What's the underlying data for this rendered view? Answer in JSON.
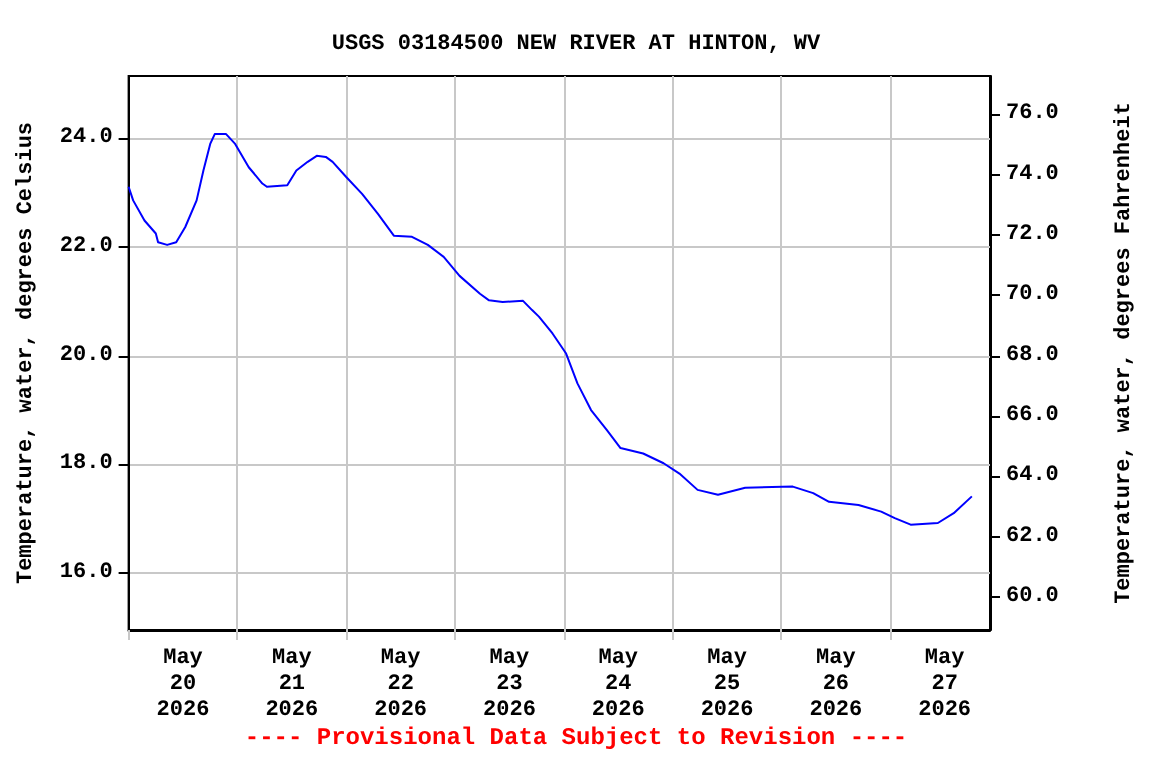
{
  "chart_data": {
    "type": "line",
    "title": "USGS 03184500 NEW RIVER AT HINTON, WV",
    "ylabel": "Temperature, water, degrees Celsius",
    "y2label": "Temperature, water, degrees Fahrenheit",
    "annotations": [
      "---- Provisional Data Subject to Revision ----"
    ],
    "xlim": [
      "2026-05-20T00:00",
      "2026-05-27T22:00"
    ],
    "xticks": [
      {
        "value": "2026-05-20T00:00",
        "label": null
      },
      {
        "value": "2026-05-20T12:00",
        "label": "May\n20\n2026"
      },
      {
        "value": "2026-05-21T00:00",
        "label": null
      },
      {
        "value": "2026-05-21T12:00",
        "label": "May\n21\n2026"
      },
      {
        "value": "2026-05-22T00:00",
        "label": null
      },
      {
        "value": "2026-05-22T12:00",
        "label": "May\n22\n2026"
      },
      {
        "value": "2026-05-23T00:00",
        "label": null
      },
      {
        "value": "2026-05-23T12:00",
        "label": "May\n23\n2026"
      },
      {
        "value": "2026-05-24T00:00",
        "label": null
      },
      {
        "value": "2026-05-24T12:00",
        "label": "May\n24\n2026"
      },
      {
        "value": "2026-05-25T00:00",
        "label": null
      },
      {
        "value": "2026-05-25T12:00",
        "label": "May\n25\n2026"
      },
      {
        "value": "2026-05-26T00:00",
        "label": null
      },
      {
        "value": "2026-05-26T12:00",
        "label": "May\n26\n2026"
      },
      {
        "value": "2026-05-27T00:00",
        "label": null
      },
      {
        "value": "2026-05-27T12:00",
        "label": "May\n27\n2026"
      }
    ],
    "ylim": [
      14.95,
      25.15
    ],
    "yticks": [
      {
        "value": 16,
        "label": "16.0"
      },
      {
        "value": 18,
        "label": "18.0"
      },
      {
        "value": 20,
        "label": "20.0"
      },
      {
        "value": 22,
        "label": "22.0"
      },
      {
        "value": 24,
        "label": "24.0"
      }
    ],
    "y2lim": [
      58.91,
      77.27
    ],
    "y2ticks": [
      {
        "value": 60,
        "label": "60.0"
      },
      {
        "value": 62,
        "label": "62.0"
      },
      {
        "value": 64,
        "label": "64.0"
      },
      {
        "value": 66,
        "label": "66.0"
      },
      {
        "value": 68,
        "label": "68.0"
      },
      {
        "value": 70,
        "label": "70.0"
      },
      {
        "value": 72,
        "label": "72.0"
      },
      {
        "value": 74,
        "label": "74.0"
      },
      {
        "value": 76,
        "label": "76.0"
      }
    ],
    "grid": true,
    "marker": "none",
    "line_style": "solid",
    "series": [
      {
        "color": "#0000ff",
        "x": [
          "2026-05-20T00:00",
          "2026-05-20T01:00",
          "2026-05-20T03:30",
          "2026-05-20T06:00",
          "2026-05-20T06:30",
          "2026-05-20T08:30",
          "2026-05-20T10:30",
          "2026-05-20T12:30",
          "2026-05-20T15:00",
          "2026-05-20T16:30",
          "2026-05-20T18:00",
          "2026-05-20T19:00",
          "2026-05-20T21:30",
          "2026-05-20T23:30",
          "2026-05-21T02:30",
          "2026-05-21T05:30",
          "2026-05-21T06:30",
          "2026-05-21T11:00",
          "2026-05-21T13:00",
          "2026-05-21T15:30",
          "2026-05-21T17:30",
          "2026-05-21T19:30",
          "2026-05-21T21:00",
          "2026-05-22T00:00",
          "2026-05-22T03:30",
          "2026-05-22T07:00",
          "2026-05-22T10:30",
          "2026-05-22T14:30",
          "2026-05-22T18:00",
          "2026-05-22T21:30",
          "2026-05-23T01:00",
          "2026-05-23T05:30",
          "2026-05-23T07:30",
          "2026-05-23T10:30",
          "2026-05-23T15:00",
          "2026-05-23T17:00",
          "2026-05-23T18:30",
          "2026-05-23T21:30",
          "2026-05-24T00:30",
          "2026-05-24T03:00",
          "2026-05-24T06:00",
          "2026-05-24T09:30",
          "2026-05-24T12:30",
          "2026-05-24T17:30",
          "2026-05-24T22:00",
          "2026-05-25T01:30",
          "2026-05-25T05:30",
          "2026-05-25T10:00",
          "2026-05-25T16:00",
          "2026-05-26T02:30",
          "2026-05-26T07:00",
          "2026-05-26T10:30",
          "2026-05-26T17:00",
          "2026-05-26T22:00",
          "2026-05-27T01:00",
          "2026-05-27T04:30",
          "2026-05-27T10:30",
          "2026-05-27T14:00",
          "2026-05-27T18:00"
        ],
        "values": [
          23.11,
          22.86,
          22.49,
          22.25,
          22.09,
          22.04,
          22.09,
          22.37,
          22.86,
          23.41,
          23.9,
          24.08,
          24.08,
          23.9,
          23.47,
          23.17,
          23.11,
          23.14,
          23.41,
          23.57,
          23.68,
          23.66,
          23.57,
          23.29,
          22.98,
          22.61,
          22.21,
          22.19,
          22.04,
          21.82,
          21.47,
          21.14,
          21.02,
          20.99,
          21.01,
          20.84,
          20.72,
          20.41,
          20.04,
          19.49,
          19.0,
          18.63,
          18.3,
          18.2,
          18.02,
          17.83,
          17.53,
          17.44,
          17.57,
          17.59,
          17.47,
          17.31,
          17.25,
          17.13,
          17.01,
          16.89,
          16.92,
          17.1,
          17.41
        ]
      }
    ]
  }
}
